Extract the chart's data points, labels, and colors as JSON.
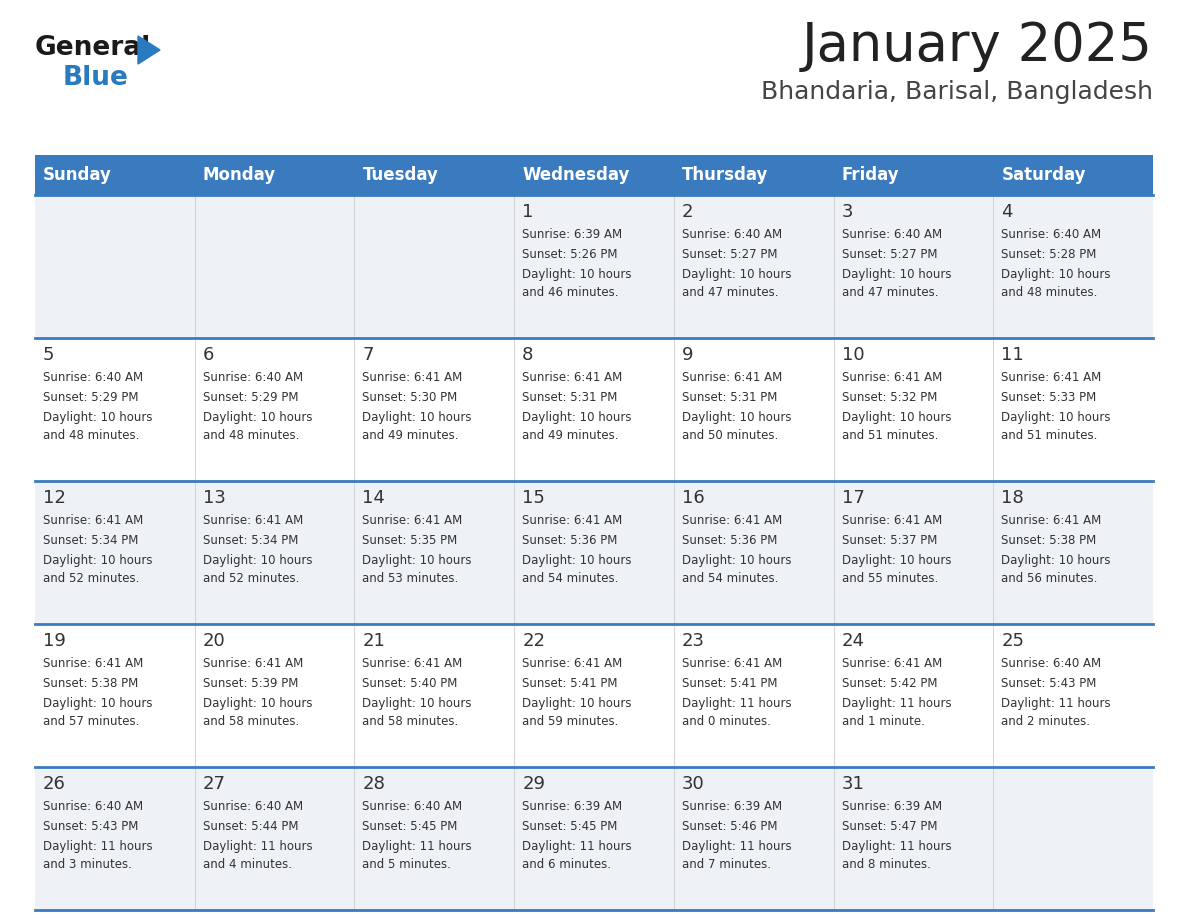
{
  "title": "January 2025",
  "subtitle": "Bhandaria, Barisal, Bangladesh",
  "days_of_week": [
    "Sunday",
    "Monday",
    "Tuesday",
    "Wednesday",
    "Thursday",
    "Friday",
    "Saturday"
  ],
  "header_bg": "#3a7abf",
  "header_text": "#ffffff",
  "row_bg_odd": "#eef2f7",
  "row_bg_even": "#ffffff",
  "cell_border": "#3a7abf",
  "day_num_color": "#333333",
  "text_color": "#333333",
  "title_color": "#222222",
  "subtitle_color": "#444444",
  "logo_general_color": "#1a1a1a",
  "logo_blue_color": "#2a7abf",
  "calendar_data": [
    [
      null,
      null,
      null,
      {
        "day": 1,
        "sunrise": "6:39 AM",
        "sunset": "5:26 PM",
        "daylight": "10 hours and 46 minutes."
      },
      {
        "day": 2,
        "sunrise": "6:40 AM",
        "sunset": "5:27 PM",
        "daylight": "10 hours and 47 minutes."
      },
      {
        "day": 3,
        "sunrise": "6:40 AM",
        "sunset": "5:27 PM",
        "daylight": "10 hours and 47 minutes."
      },
      {
        "day": 4,
        "sunrise": "6:40 AM",
        "sunset": "5:28 PM",
        "daylight": "10 hours and 48 minutes."
      }
    ],
    [
      {
        "day": 5,
        "sunrise": "6:40 AM",
        "sunset": "5:29 PM",
        "daylight": "10 hours and 48 minutes."
      },
      {
        "day": 6,
        "sunrise": "6:40 AM",
        "sunset": "5:29 PM",
        "daylight": "10 hours and 48 minutes."
      },
      {
        "day": 7,
        "sunrise": "6:41 AM",
        "sunset": "5:30 PM",
        "daylight": "10 hours and 49 minutes."
      },
      {
        "day": 8,
        "sunrise": "6:41 AM",
        "sunset": "5:31 PM",
        "daylight": "10 hours and 49 minutes."
      },
      {
        "day": 9,
        "sunrise": "6:41 AM",
        "sunset": "5:31 PM",
        "daylight": "10 hours and 50 minutes."
      },
      {
        "day": 10,
        "sunrise": "6:41 AM",
        "sunset": "5:32 PM",
        "daylight": "10 hours and 51 minutes."
      },
      {
        "day": 11,
        "sunrise": "6:41 AM",
        "sunset": "5:33 PM",
        "daylight": "10 hours and 51 minutes."
      }
    ],
    [
      {
        "day": 12,
        "sunrise": "6:41 AM",
        "sunset": "5:34 PM",
        "daylight": "10 hours and 52 minutes."
      },
      {
        "day": 13,
        "sunrise": "6:41 AM",
        "sunset": "5:34 PM",
        "daylight": "10 hours and 52 minutes."
      },
      {
        "day": 14,
        "sunrise": "6:41 AM",
        "sunset": "5:35 PM",
        "daylight": "10 hours and 53 minutes."
      },
      {
        "day": 15,
        "sunrise": "6:41 AM",
        "sunset": "5:36 PM",
        "daylight": "10 hours and 54 minutes."
      },
      {
        "day": 16,
        "sunrise": "6:41 AM",
        "sunset": "5:36 PM",
        "daylight": "10 hours and 54 minutes."
      },
      {
        "day": 17,
        "sunrise": "6:41 AM",
        "sunset": "5:37 PM",
        "daylight": "10 hours and 55 minutes."
      },
      {
        "day": 18,
        "sunrise": "6:41 AM",
        "sunset": "5:38 PM",
        "daylight": "10 hours and 56 minutes."
      }
    ],
    [
      {
        "day": 19,
        "sunrise": "6:41 AM",
        "sunset": "5:38 PM",
        "daylight": "10 hours and 57 minutes."
      },
      {
        "day": 20,
        "sunrise": "6:41 AM",
        "sunset": "5:39 PM",
        "daylight": "10 hours and 58 minutes."
      },
      {
        "day": 21,
        "sunrise": "6:41 AM",
        "sunset": "5:40 PM",
        "daylight": "10 hours and 58 minutes."
      },
      {
        "day": 22,
        "sunrise": "6:41 AM",
        "sunset": "5:41 PM",
        "daylight": "10 hours and 59 minutes."
      },
      {
        "day": 23,
        "sunrise": "6:41 AM",
        "sunset": "5:41 PM",
        "daylight": "11 hours and 0 minutes."
      },
      {
        "day": 24,
        "sunrise": "6:41 AM",
        "sunset": "5:42 PM",
        "daylight": "11 hours and 1 minute."
      },
      {
        "day": 25,
        "sunrise": "6:40 AM",
        "sunset": "5:43 PM",
        "daylight": "11 hours and 2 minutes."
      }
    ],
    [
      {
        "day": 26,
        "sunrise": "6:40 AM",
        "sunset": "5:43 PM",
        "daylight": "11 hours and 3 minutes."
      },
      {
        "day": 27,
        "sunrise": "6:40 AM",
        "sunset": "5:44 PM",
        "daylight": "11 hours and 4 minutes."
      },
      {
        "day": 28,
        "sunrise": "6:40 AM",
        "sunset": "5:45 PM",
        "daylight": "11 hours and 5 minutes."
      },
      {
        "day": 29,
        "sunrise": "6:39 AM",
        "sunset": "5:45 PM",
        "daylight": "11 hours and 6 minutes."
      },
      {
        "day": 30,
        "sunrise": "6:39 AM",
        "sunset": "5:46 PM",
        "daylight": "11 hours and 7 minutes."
      },
      {
        "day": 31,
        "sunrise": "6:39 AM",
        "sunset": "5:47 PM",
        "daylight": "11 hours and 8 minutes."
      },
      null
    ]
  ]
}
